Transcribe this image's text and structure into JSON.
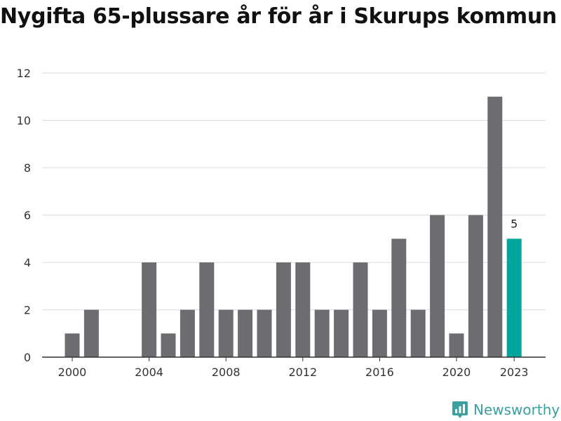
{
  "chart_data": {
    "type": "bar",
    "title": "Nygifta 65-plussare år för år i Skurups kommun",
    "xlabel": "",
    "ylabel": "",
    "ylim": [
      0,
      12
    ],
    "yticks": [
      0,
      2,
      4,
      6,
      8,
      10,
      12
    ],
    "xticks": [
      "2000",
      "2004",
      "2008",
      "2012",
      "2016",
      "2020",
      "2023"
    ],
    "categories": [
      "2000",
      "2001",
      "2002",
      "2003",
      "2004",
      "2005",
      "2006",
      "2007",
      "2008",
      "2009",
      "2010",
      "2011",
      "2012",
      "2013",
      "2014",
      "2015",
      "2016",
      "2017",
      "2018",
      "2019",
      "2020",
      "2021",
      "2022",
      "2023"
    ],
    "values": [
      1,
      2,
      0,
      0,
      4,
      1,
      2,
      4,
      2,
      2,
      2,
      4,
      4,
      2,
      2,
      4,
      2,
      5,
      2,
      6,
      1,
      6,
      11,
      5
    ],
    "highlight": {
      "category": "2023",
      "label": "5"
    },
    "colors": {
      "bar": "#6d6c71",
      "highlight": "#00a69c",
      "grid": "#dddddd",
      "axis": "#333333"
    },
    "grid": true
  },
  "branding": {
    "name": "Newsworthy",
    "color": "#3aa0a0",
    "icon": "bar-chart-pin-icon"
  }
}
